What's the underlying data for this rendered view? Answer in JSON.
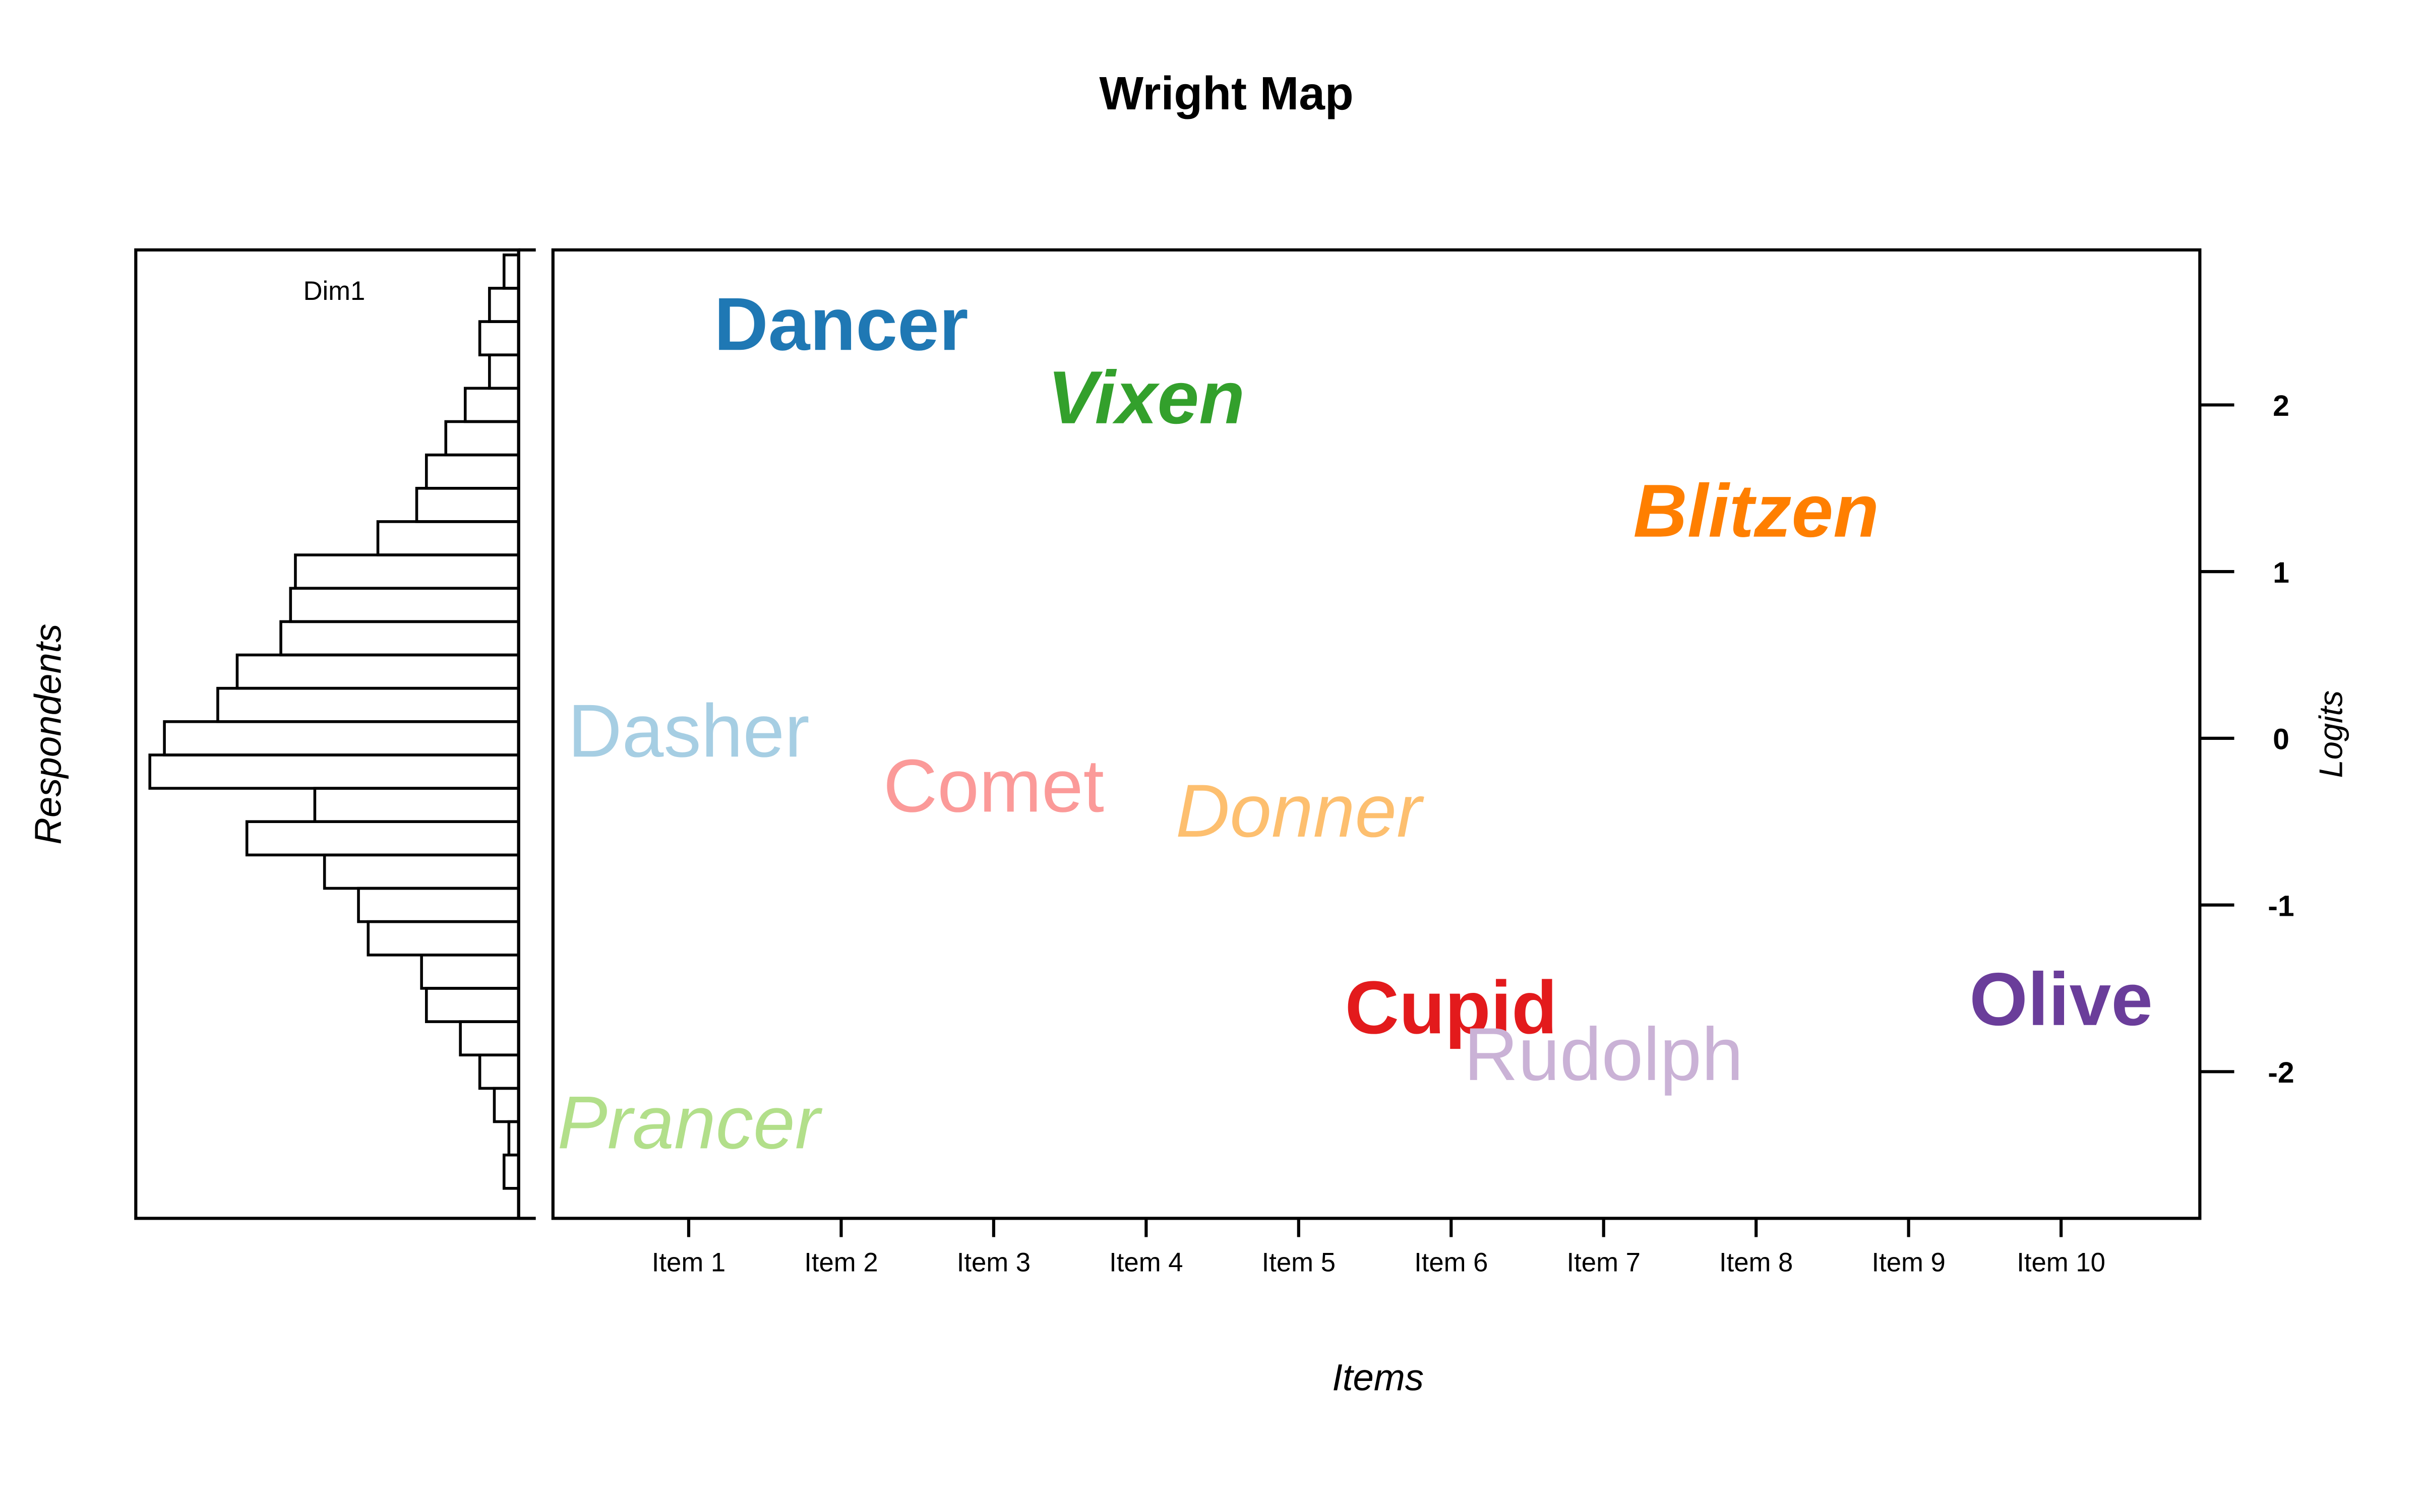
{
  "chart_data": {
    "type": "wright-map",
    "title": "Wright Map",
    "xlabel": "Items",
    "ylabel_left": "Respondents",
    "ylabel_right": "Logits",
    "dimension_label": "Dim1",
    "ylim": [
      -2.88,
      2.93
    ],
    "yticks": [
      2,
      1,
      0,
      -1,
      -2
    ],
    "ytick_labels": [
      "2",
      "1",
      "0",
      "-1",
      "-2"
    ],
    "categories": [
      "Item 1",
      "Item 2",
      "Item 3",
      "Item 4",
      "Item 5",
      "Item 6",
      "Item 7",
      "Item 8",
      "Item 9",
      "Item 10"
    ],
    "xlim": [
      0.11,
      10.91
    ],
    "histogram": {
      "bins": [
        {
          "low": 2.7,
          "high": 2.9,
          "count": 3
        },
        {
          "low": 2.5,
          "high": 2.7,
          "count": 6
        },
        {
          "low": 2.3,
          "high": 2.5,
          "count": 8
        },
        {
          "low": 2.1,
          "high": 2.3,
          "count": 6
        },
        {
          "low": 1.9,
          "high": 2.1,
          "count": 11
        },
        {
          "low": 1.7,
          "high": 1.9,
          "count": 15
        },
        {
          "low": 1.5,
          "high": 1.7,
          "count": 19
        },
        {
          "low": 1.3,
          "high": 1.5,
          "count": 21
        },
        {
          "low": 1.1,
          "high": 1.3,
          "count": 29
        },
        {
          "low": 0.9,
          "high": 1.1,
          "count": 46
        },
        {
          "low": 0.7,
          "high": 0.9,
          "count": 47
        },
        {
          "low": 0.5,
          "high": 0.7,
          "count": 49
        },
        {
          "low": 0.3,
          "high": 0.5,
          "count": 58
        },
        {
          "low": 0.1,
          "high": 0.3,
          "count": 62
        },
        {
          "low": -0.1,
          "high": 0.1,
          "count": 73
        },
        {
          "low": -0.3,
          "high": -0.1,
          "count": 76
        },
        {
          "low": -0.5,
          "high": -0.3,
          "count": 42
        },
        {
          "low": -0.7,
          "high": -0.5,
          "count": 56
        },
        {
          "low": -0.9,
          "high": -0.7,
          "count": 40
        },
        {
          "low": -1.1,
          "high": -0.9,
          "count": 33
        },
        {
          "low": -1.3,
          "high": -1.1,
          "count": 31
        },
        {
          "low": -1.5,
          "high": -1.3,
          "count": 20
        },
        {
          "low": -1.7,
          "high": -1.5,
          "count": 19
        },
        {
          "low": -1.9,
          "high": -1.7,
          "count": 12
        },
        {
          "low": -2.1,
          "high": -1.9,
          "count": 8
        },
        {
          "low": -2.3,
          "high": -2.1,
          "count": 5
        },
        {
          "low": -2.5,
          "high": -2.3,
          "count": 2
        },
        {
          "low": -2.7,
          "high": -2.5,
          "count": 3
        }
      ],
      "count_max": 76
    },
    "series": [
      {
        "name": "Dasher",
        "item": 1,
        "logit": 0.04,
        "color": "#A6CEE3",
        "weight": "normal",
        "style": "normal"
      },
      {
        "name": "Dancer",
        "item": 2,
        "logit": 2.48,
        "color": "#1F78B4",
        "weight": "bold",
        "style": "normal"
      },
      {
        "name": "Prancer",
        "item": 1,
        "logit": -2.31,
        "color": "#B2DF8A",
        "weight": "normal",
        "style": "italic"
      },
      {
        "name": "Vixen",
        "item": 4,
        "logit": 2.04,
        "color": "#33A02C",
        "weight": "bold",
        "style": "italic"
      },
      {
        "name": "Comet",
        "item": 3,
        "logit": -0.29,
        "color": "#FB9A99",
        "weight": "normal",
        "style": "normal"
      },
      {
        "name": "Cupid",
        "item": 6,
        "logit": -1.62,
        "color": "#E31A1C",
        "weight": "bold",
        "style": "normal"
      },
      {
        "name": "Donner",
        "item": 5,
        "logit": -0.44,
        "color": "#FDBF6F",
        "weight": "normal",
        "style": "italic"
      },
      {
        "name": "Blitzen",
        "item": 8,
        "logit": 1.36,
        "color": "#FF7F00",
        "weight": "bold",
        "style": "italic"
      },
      {
        "name": "Rudolph",
        "item": 7,
        "logit": -1.9,
        "color": "#CAB2D6",
        "weight": "normal",
        "style": "normal"
      },
      {
        "name": "Olive",
        "item": 10,
        "logit": -1.57,
        "color": "#6A3D9A",
        "weight": "bold",
        "style": "normal"
      }
    ]
  }
}
